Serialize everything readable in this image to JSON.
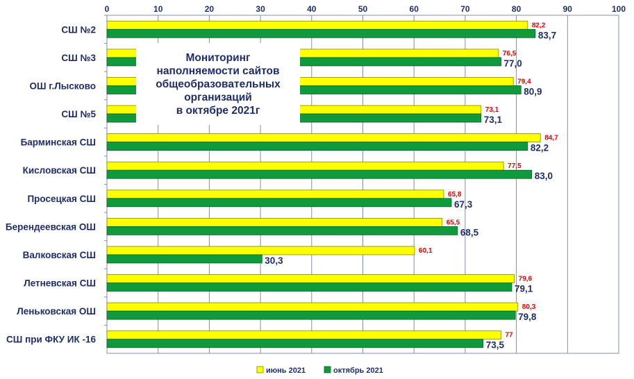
{
  "chart_data": {
    "type": "bar",
    "orientation": "horizontal",
    "title": "Мониторинг\nнаполняемости сайтов\nобщеобразовательных\nорганизаций\nв октябре 2021г",
    "xlim": [
      0,
      100
    ],
    "x_ticks": [
      "0",
      "10",
      "20",
      "30",
      "40",
      "50",
      "60",
      "70",
      "80",
      "90",
      "100"
    ],
    "grid": true,
    "legend_position": "bottom",
    "categories": [
      "СШ №2",
      "СШ №3",
      "ОШ г.Лысково",
      "СШ №5",
      "Барминская СШ",
      "Кисловская СШ",
      "Просецкая СШ",
      "Берендеевская ОШ",
      "Валковская СШ",
      "Летневская СШ",
      "Леньковская ОШ",
      "СШ при ФКУ ИК -16"
    ],
    "series": [
      {
        "name": "июнь 2021",
        "color": "#ffff00",
        "label_color": "#e60000",
        "values": [
          82.2,
          76.5,
          79.4,
          73.1,
          84.7,
          77.5,
          65.8,
          65.5,
          60.1,
          79.6,
          80.3,
          77
        ],
        "labels": [
          "82,2",
          "76,5",
          "79,4",
          "73,1",
          "84,7",
          "77,5",
          "65,8",
          "65,5",
          "60,1",
          "79,6",
          "80,3",
          "77"
        ]
      },
      {
        "name": "октябрь 2021",
        "color": "#0f9b3c",
        "label_color": "#1f2d6b",
        "values": [
          83.7,
          77.0,
          80.9,
          73.1,
          82.2,
          83.0,
          67.3,
          68.5,
          30.3,
          79.1,
          79.8,
          73.5
        ],
        "labels": [
          "83,7",
          "77,0",
          "80,9",
          "73,1",
          "82,2",
          "83,0",
          "67,3",
          "68,5",
          "30,3",
          "79,1",
          "79,8",
          "73,5"
        ]
      }
    ]
  }
}
